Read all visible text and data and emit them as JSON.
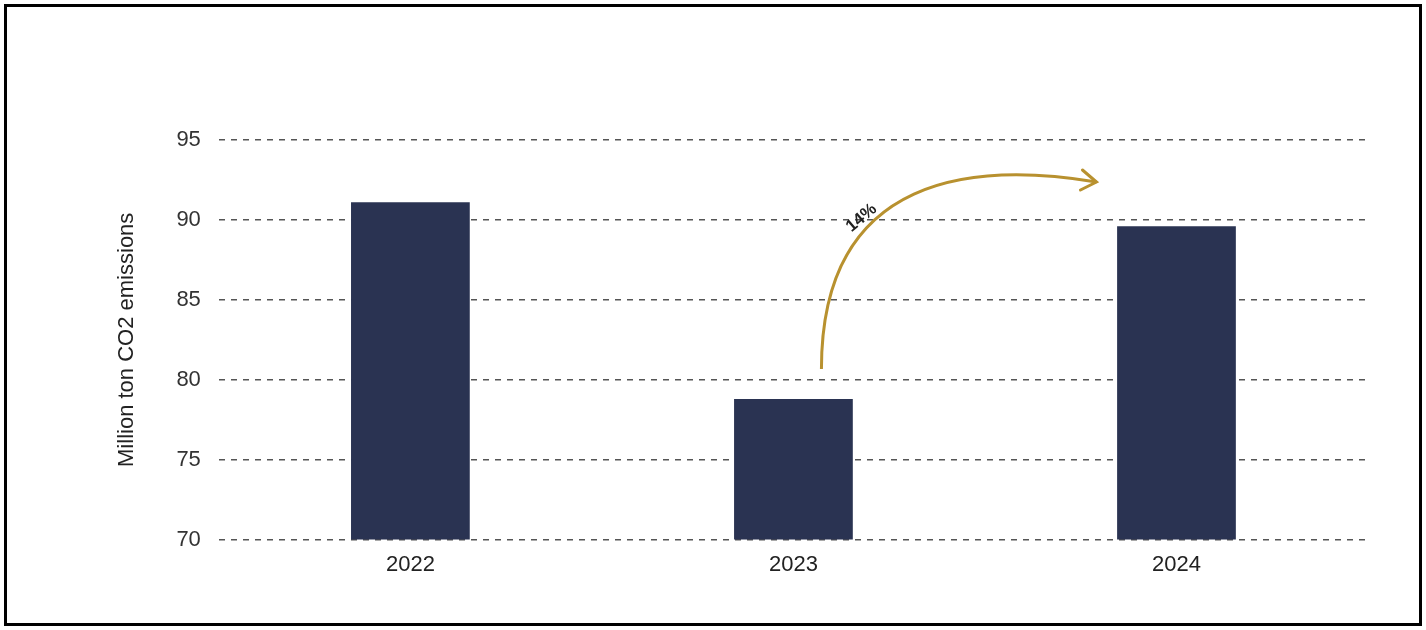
{
  "chart_data": {
    "type": "bar",
    "ylabel": "Million ton CO2 emissions",
    "categories": [
      "2022",
      "2023",
      "2024"
    ],
    "values": [
      91.1,
      78.8,
      89.6
    ],
    "color": "#2a3352",
    "ylim": [
      70,
      95
    ],
    "yticks": [
      70,
      75,
      80,
      85,
      90,
      95
    ],
    "grid": "y",
    "legend": false,
    "annotations": [
      "14%"
    ]
  }
}
